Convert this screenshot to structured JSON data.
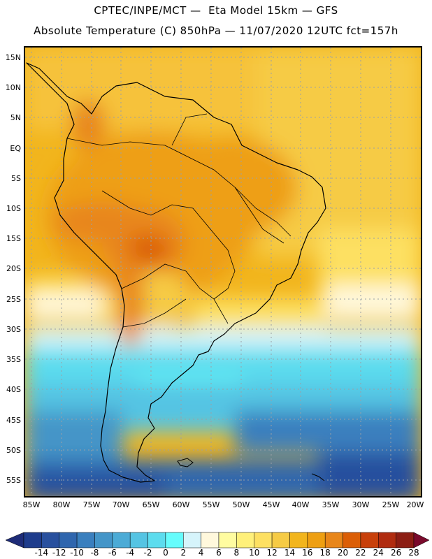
{
  "header": {
    "line1": "CPTEC/INPE/MCT —  Eta Model 15km — GFS",
    "line2": "Absolute Temperature (C) 850hPa — 11/07/2020 12UTC fct=157h"
  },
  "map": {
    "region": "South America",
    "latitude_labels": [
      "15N",
      "10N",
      "5N",
      "EQ",
      "5S",
      "10S",
      "15S",
      "20S",
      "25S",
      "30S",
      "35S",
      "40S",
      "45S",
      "50S",
      "55S"
    ],
    "longitude_labels": [
      "85W",
      "80W",
      "75W",
      "70W",
      "65W",
      "60W",
      "55W",
      "50W",
      "45W",
      "40W",
      "35W",
      "30W",
      "25W",
      "20W"
    ]
  },
  "legend": {
    "labels": [
      "-14",
      "-12",
      "-10",
      "-8",
      "-6",
      "-4",
      "-2",
      "0",
      "2",
      "4",
      "6",
      "8",
      "10",
      "12",
      "14",
      "16",
      "18",
      "20",
      "22",
      "24",
      "26",
      "28"
    ],
    "colors": [
      "#1e3c8c",
      "#28509e",
      "#2f66ae",
      "#3a7fbe",
      "#4495c8",
      "#4cabd6",
      "#55c4e3",
      "#5cdcee",
      "#66fcfc",
      "#d6f4fb",
      "#fff8dc",
      "#fffca0",
      "#fff07a",
      "#fde062",
      "#f6cb45",
      "#f2b51d",
      "#ee9f12",
      "#e8861a",
      "#db5e06",
      "#c8400a",
      "#b02c10",
      "#8c1e14"
    ],
    "arrow_low_color": "#1e2c78",
    "arrow_high_color": "#7a0a2c"
  }
}
